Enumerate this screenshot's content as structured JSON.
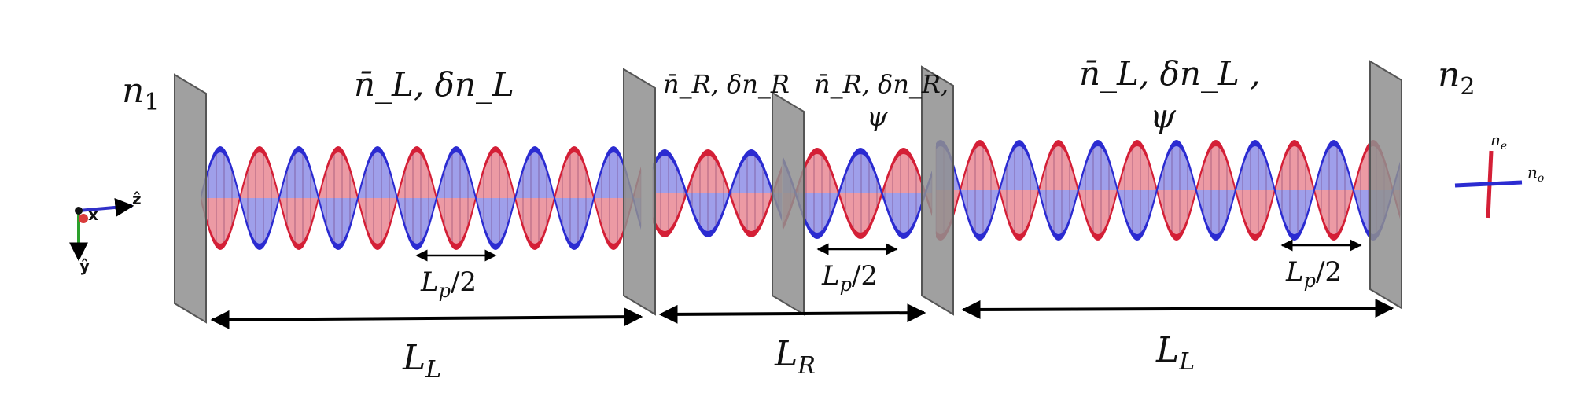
{
  "colors": {
    "red_helix": "#d41f36",
    "blue_helix": "#2b2bd1",
    "plate": "#8f8f8f",
    "plate_edge": "#555555",
    "arrow": "#000000",
    "axis_x": "#d93b3b",
    "axis_y": "#2ca02c",
    "axis_z": "#3030c8"
  },
  "labels": {
    "n1": {
      "base": "n",
      "sub": "1"
    },
    "n2": {
      "base": "n",
      "sub": "2"
    },
    "seg1_params": "n̄_L, δn_L",
    "seg2_params": "n̄_R, δn_R",
    "seg3_params_line1": "n̄_R, δn_R,",
    "seg3_params_line2": "ψ",
    "seg4_params_line1": "n̄_L, δn_L ,",
    "seg4_params_line2": "ψ",
    "pitch": {
      "base": "L",
      "sub": "p",
      "suffix": "/2"
    },
    "len_left": {
      "base": "L",
      "sub": "L"
    },
    "len_mid": {
      "base": "L",
      "sub": "R"
    },
    "len_right": {
      "base": "L",
      "sub": "L"
    }
  },
  "axes_triad": {
    "x": "x",
    "y": "ŷ",
    "z": "ẑ"
  },
  "optic_axes": {
    "ne": {
      "base": "n",
      "sub": "e"
    },
    "no": {
      "base": "n",
      "sub": "o"
    }
  }
}
